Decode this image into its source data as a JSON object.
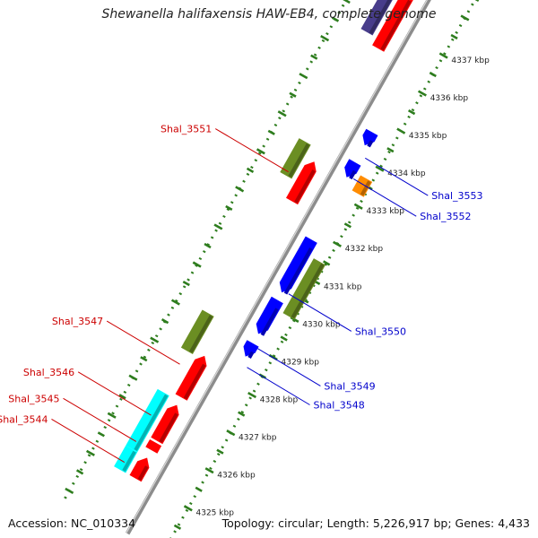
{
  "title": "Shewanella halifaxensis HAW-EB4, complete genome",
  "footer": {
    "accession": "Accession: NC_010334",
    "topology": "Topology: circular; Length: 5,226,917 bp; Genes: 4,433"
  },
  "colors": {
    "backbone": "#8c8c8c",
    "tick_green": "#2e7d1e",
    "gene_label_forward": "#cc0000",
    "gene_label_reverse": "#0000cc",
    "gene_red": "#ff0000",
    "gene_blue": "#0000ff",
    "gene_olive": "#6b8e23",
    "gene_cyan": "#00ffff",
    "gene_orange": "#ff8c00",
    "gene_purple": "#483d8b"
  },
  "scale": {
    "ticks_kbp": [
      4325,
      4326,
      4327,
      4328,
      4329,
      4330,
      4331,
      4332,
      4333,
      4334,
      4335,
      4336,
      4337
    ],
    "tick_labels": [
      "4325 kbp",
      "4326 kbp",
      "4327 kbp",
      "4328 kbp",
      "4329 kbp",
      "4330 kbp",
      "4331 kbp",
      "4332 kbp",
      "4333 kbp",
      "4334 kbp",
      "4335 kbp",
      "4336 kbp",
      "4337 kbp"
    ]
  },
  "features": [
    {
      "track": "outer_plus",
      "start": 4325.0,
      "end": 4325.55,
      "color": "cyan"
    },
    {
      "track": "outer_plus",
      "start": 4325.55,
      "end": 4327.05,
      "color": "cyan"
    },
    {
      "track": "outer_plus",
      "start": 4328.15,
      "end": 4329.15,
      "color": "olive"
    },
    {
      "track": "outer_plus",
      "start": 4332.8,
      "end": 4333.7,
      "color": "olive"
    },
    {
      "track": "outer_plus",
      "start": 4336.6,
      "end": 4337.8,
      "color": "purple"
    },
    {
      "track": "inner_plus",
      "start": 4325.0,
      "end": 4325.55,
      "color": "red",
      "arrow": "forward"
    },
    {
      "track": "inner_plus",
      "start": 4325.75,
      "end": 4325.95,
      "color": "red",
      "arrow": "none"
    },
    {
      "track": "inner_plus",
      "start": 4326.0,
      "end": 4326.95,
      "color": "red",
      "arrow": "forward"
    },
    {
      "track": "inner_plus",
      "start": 4327.15,
      "end": 4328.25,
      "color": "red",
      "arrow": "forward"
    },
    {
      "track": "inner_plus",
      "start": 4332.35,
      "end": 4333.4,
      "color": "red",
      "arrow": "forward"
    },
    {
      "track": "inner_plus",
      "start": 4336.4,
      "end": 4337.9,
      "color": "red",
      "arrow": "none"
    },
    {
      "track": "inner_minus",
      "start": 4328.7,
      "end": 4329.05,
      "color": "blue",
      "arrow": "reverse"
    },
    {
      "track": "inner_minus",
      "start": 4329.3,
      "end": 4330.2,
      "color": "blue",
      "arrow": "reverse"
    },
    {
      "track": "inner_minus",
      "start": 4330.4,
      "end": 4331.8,
      "color": "blue",
      "arrow": "reverse"
    },
    {
      "track": "inner_minus",
      "start": 4333.45,
      "end": 4333.85,
      "color": "blue",
      "arrow": "reverse"
    },
    {
      "track": "inner_minus",
      "start": 4334.3,
      "end": 4334.65,
      "color": "blue",
      "arrow": "reverse"
    },
    {
      "track": "outer_minus",
      "start": 4330.0,
      "end": 4331.45,
      "color": "olive"
    },
    {
      "track": "outer_minus",
      "start": 4333.25,
      "end": 4333.65,
      "color": "orange"
    }
  ],
  "gene_labels": [
    {
      "text": "Shal_3544",
      "side": "left",
      "at": 4325.2
    },
    {
      "text": "Shal_3545",
      "side": "left",
      "at": 4325.75
    },
    {
      "text": "Shal_3546",
      "side": "left",
      "at": 4326.45
    },
    {
      "text": "Shal_3547",
      "side": "left",
      "at": 4327.8
    },
    {
      "text": "Shal_3551",
      "side": "left",
      "at": 4332.9
    },
    {
      "text": "Shal_3553",
      "side": "right",
      "at": 4334.05
    },
    {
      "text": "Shal_3552",
      "side": "right",
      "at": 4333.5
    },
    {
      "text": "Shal_3550",
      "side": "right",
      "at": 4330.45
    },
    {
      "text": "Shal_3549",
      "side": "right",
      "at": 4329.0
    },
    {
      "text": "Shal_3548",
      "side": "right",
      "at": 4328.5
    }
  ]
}
